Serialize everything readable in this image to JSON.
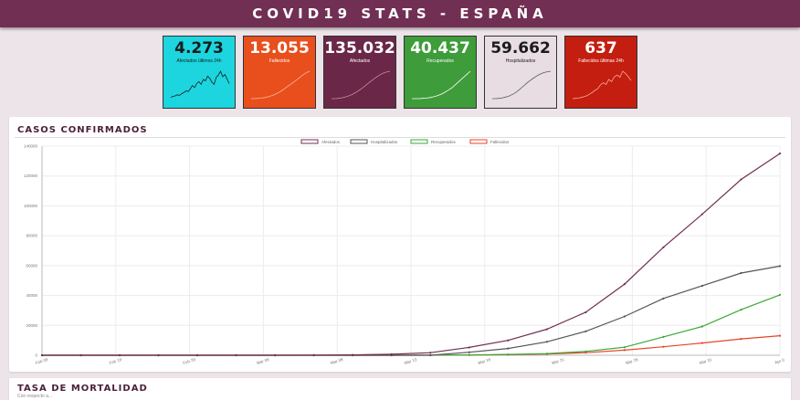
{
  "header": {
    "title": "COVID19 STATS - ESPAÑA"
  },
  "cards": [
    {
      "value": "4.273",
      "label": "Afectados últimos 24h",
      "bg": "#1cd5de",
      "fg": "#1b1b1b",
      "line": "#1b1b1b",
      "icon": "sparkline-icon",
      "trend": [
        0.05,
        0.08,
        0.1,
        0.14,
        0.12,
        0.18,
        0.22,
        0.28,
        0.26,
        0.35,
        0.48,
        0.4,
        0.55,
        0.62,
        0.52,
        0.7,
        0.65,
        0.82,
        0.74,
        0.6,
        0.52,
        0.78,
        0.86,
        1.0,
        0.8,
        0.88,
        0.72,
        0.55
      ]
    },
    {
      "value": "13.055",
      "label": "Fallecidos",
      "bg": "#e84f1d",
      "fg": "#ffffff",
      "line": "#f6b79b",
      "icon": "sparkline-icon",
      "trend": [
        0.0,
        0.0,
        0.01,
        0.02,
        0.04,
        0.07,
        0.11,
        0.16,
        0.22,
        0.3,
        0.39,
        0.48,
        0.57,
        0.66,
        0.76,
        0.86,
        0.94,
        1.0
      ]
    },
    {
      "value": "135.032",
      "label": "Afectados",
      "bg": "#6b2748",
      "fg": "#ffffff",
      "line": "#c9889f",
      "icon": "sparkline-icon",
      "trend": [
        0.0,
        0.0,
        0.01,
        0.03,
        0.06,
        0.1,
        0.15,
        0.22,
        0.3,
        0.39,
        0.49,
        0.59,
        0.69,
        0.78,
        0.86,
        0.93,
        0.97,
        1.0
      ]
    },
    {
      "value": "40.437",
      "label": "Recuperados",
      "bg": "#3e9c3a",
      "fg": "#ffffff",
      "line": "#ffffff",
      "icon": "sparkline-icon",
      "trend": [
        0.0,
        0.0,
        0.0,
        0.01,
        0.02,
        0.04,
        0.07,
        0.11,
        0.16,
        0.23,
        0.31,
        0.4,
        0.52,
        0.64,
        0.76,
        0.88,
        1.0
      ]
    },
    {
      "value": "59.662",
      "label": "Hospitalizados",
      "bg": "#e7dde3",
      "fg": "#1b1b1b",
      "line": "#5a5a5a",
      "icon": "sparkline-icon",
      "trend": [
        0.0,
        0.0,
        0.01,
        0.03,
        0.06,
        0.1,
        0.16,
        0.24,
        0.34,
        0.45,
        0.56,
        0.66,
        0.75,
        0.83,
        0.9,
        0.95,
        0.98,
        1.0
      ]
    },
    {
      "value": "637",
      "label": "Fallecidos últimas 24h",
      "bg": "#c41e10",
      "fg": "#ffffff",
      "line": "#f4aaa0",
      "icon": "sparkline-icon",
      "trend": [
        0.0,
        0.01,
        0.02,
        0.04,
        0.07,
        0.1,
        0.16,
        0.22,
        0.3,
        0.36,
        0.5,
        0.58,
        0.52,
        0.7,
        0.62,
        0.8,
        0.86,
        0.78,
        1.0,
        0.92,
        0.8,
        0.66
      ]
    }
  ],
  "sections": {
    "confirmed_title": "CASOS CONFIRMADOS",
    "mortality_title": "TASA DE MORTALIDAD",
    "mortality_sub": "Con respecto a..."
  },
  "chart_data": {
    "type": "line",
    "title": "",
    "x": [
      "Feb 09",
      "Feb 12",
      "Feb 15",
      "Feb 18",
      "Feb 21",
      "Feb 24",
      "Feb 27",
      "Mar 01",
      "Mar 04",
      "Mar 07",
      "Mar 10",
      "Mar 13",
      "Mar 16",
      "Mar 19",
      "Mar 22",
      "Mar 25",
      "Mar 28",
      "Mar 31",
      "Apr 03",
      "Apr 05"
    ],
    "x_ticks": [
      "Feb 09",
      "Feb 19",
      "Feb 29",
      "Mar 06",
      "Mar 08",
      "Mar 13",
      "Mar 16",
      "Mar 21",
      "Mar 26",
      "Mar 31",
      "Apr 0"
    ],
    "ylim": [
      0,
      140000
    ],
    "y_ticks": [
      0,
      20000,
      40000,
      60000,
      80000,
      100000,
      120000,
      140000
    ],
    "grid": true,
    "legend_position": "top",
    "series": [
      {
        "name": "Afectados",
        "color": "#712f53",
        "values": [
          2,
          2,
          2,
          2,
          2,
          2,
          20,
          80,
          260,
          674,
          1695,
          5232,
          9942,
          17395,
          28768,
          47610,
          72248,
          94417,
          117710,
          135032
        ]
      },
      {
        "name": "Hospitalizados",
        "color": "#555555",
        "values": [
          0,
          0,
          0,
          0,
          0,
          0,
          0,
          0,
          0,
          0,
          0,
          2000,
          4500,
          9000,
          16000,
          26000,
          38000,
          46500,
          55000,
          59662
        ]
      },
      {
        "name": "Recuperados",
        "color": "#3aa839",
        "values": [
          0,
          0,
          0,
          0,
          0,
          0,
          0,
          0,
          0,
          1,
          32,
          193,
          530,
          1107,
          2575,
          5367,
          12285,
          19259,
          30513,
          40437
        ]
      },
      {
        "name": "Fallecidos",
        "color": "#e8432a",
        "values": [
          0,
          0,
          0,
          0,
          0,
          0,
          0,
          0,
          0,
          1,
          35,
          133,
          342,
          767,
          1720,
          3434,
          5690,
          8189,
          10935,
          13055
        ]
      }
    ]
  }
}
